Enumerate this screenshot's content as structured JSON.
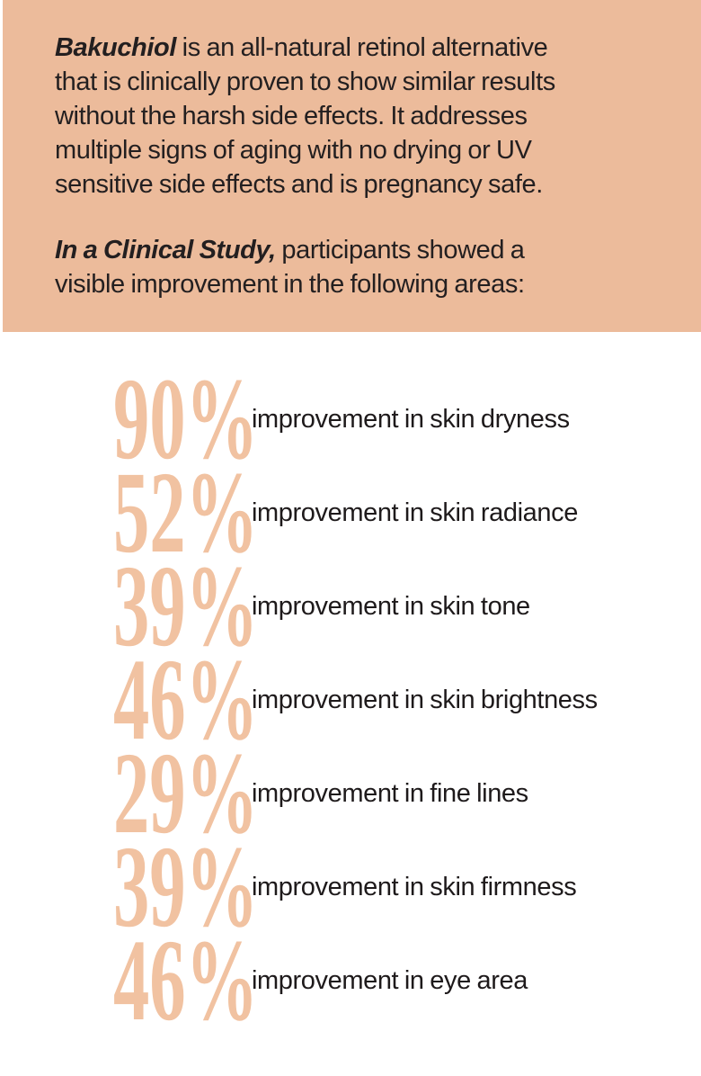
{
  "colors": {
    "panel_background": "#ecbb9b",
    "stat_accent": "#f1c2a1",
    "text": "#231f20",
    "page_background": "#ffffff"
  },
  "header": {
    "intro_lead": "Bakuchiol",
    "intro_rest": " is an all-natural retinol alternative\nthat is clinically proven to show similar results\nwithout the harsh side effects. It addresses\nmultiple signs of aging with no drying or UV\nsensitive side effects and is pregnancy safe.",
    "study_lead": "In a Clinical Study,",
    "study_rest": " participants showed a\nvisible improvement in the following areas:"
  },
  "stats": {
    "items": [
      {
        "value": "90%",
        "label": "improvement in skin dryness"
      },
      {
        "value": "52%",
        "label": "improvement in skin radiance"
      },
      {
        "value": "39%",
        "label": "improvement in skin tone"
      },
      {
        "value": "46%",
        "label": "improvement in skin brightness"
      },
      {
        "value": "29%",
        "label": "improvement in fine lines"
      },
      {
        "value": "39%",
        "label": "improvement in skin firmness"
      },
      {
        "value": "46%",
        "label": "improvement in eye area"
      }
    ]
  },
  "chart_data": {
    "type": "table",
    "title": "In a Clinical Study, participants showed a visible improvement in the following areas:",
    "columns": [
      "improvement_percent",
      "area"
    ],
    "rows": [
      [
        90,
        "skin dryness"
      ],
      [
        52,
        "skin radiance"
      ],
      [
        39,
        "skin tone"
      ],
      [
        46,
        "skin brightness"
      ],
      [
        29,
        "fine lines"
      ],
      [
        39,
        "skin firmness"
      ],
      [
        46,
        "eye area"
      ]
    ]
  }
}
